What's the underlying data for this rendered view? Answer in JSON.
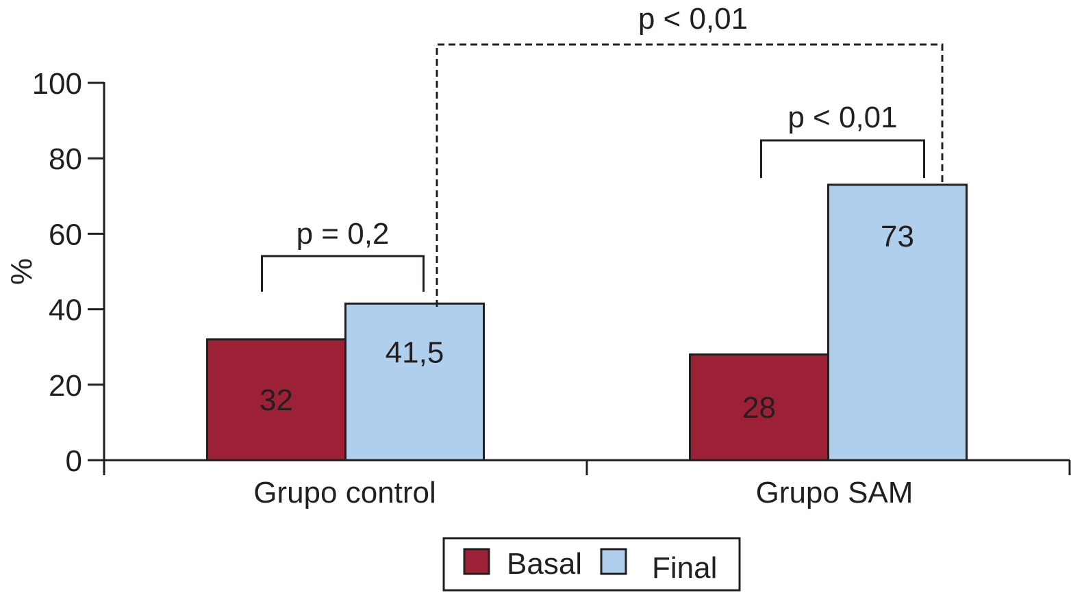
{
  "chart_data": {
    "type": "bar",
    "categories": [
      "Grupo  control",
      "Grupo SAM"
    ],
    "series": [
      {
        "name": "Basal",
        "values": [
          32,
          28
        ],
        "labels": [
          "32",
          "28"
        ],
        "color": "#9d2136"
      },
      {
        "name": "Final",
        "values": [
          41.5,
          73
        ],
        "labels": [
          "41,5",
          "73"
        ],
        "color": "#afcfec"
      }
    ],
    "ylabel": "%",
    "ylim": [
      0,
      100
    ],
    "yticks": [
      0,
      20,
      40,
      60,
      80,
      100
    ],
    "ytick_labels": [
      "0",
      "20",
      "40",
      "60",
      "80",
      "100"
    ],
    "grid": false,
    "legend_position": "bottom-center",
    "annotations": {
      "control": "p = 0,2",
      "sam": "p < 0,01",
      "between_groups": "p < 0,01"
    }
  }
}
